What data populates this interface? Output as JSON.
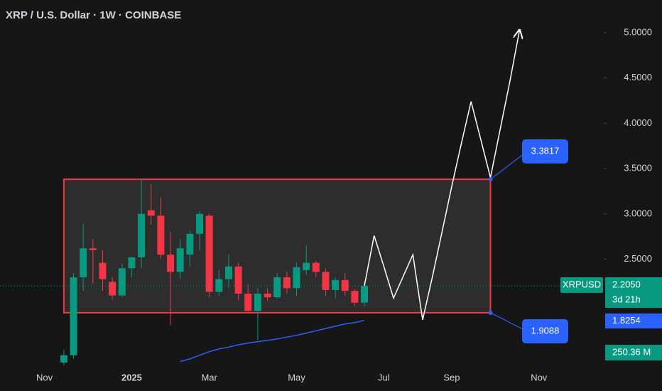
{
  "chart_data": {
    "type": "candlestick",
    "title": "XRP / U.S. Dollar · 1W · COINBASE",
    "categories": [
      null,
      null,
      null,
      null,
      "Nov",
      null,
      null,
      null,
      null,
      null,
      null,
      null,
      null,
      "2025",
      null,
      null,
      null,
      null,
      null,
      null,
      null,
      "Mar",
      null,
      null,
      null,
      null,
      null,
      null,
      null,
      null,
      "May",
      null,
      null,
      null,
      null,
      null,
      null,
      null,
      null,
      "Jul",
      null,
      null,
      null,
      null,
      null,
      null,
      "Sep",
      null,
      null,
      null,
      null,
      null,
      null,
      null,
      null,
      "Nov",
      null,
      null,
      null,
      null,
      null,
      null
    ],
    "series": [
      {
        "name": "XRPUSD",
        "up_color": "#089981",
        "down_color": "#f23645",
        "open": [
          null,
          null,
          null,
          null,
          null,
          null,
          1.36,
          1.44,
          2.3,
          2.62,
          2.46,
          2.25,
          2.1,
          2.4,
          2.52,
          3.04,
          2.98,
          2.55,
          2.36,
          2.55,
          2.78,
          2.98,
          2.14,
          2.28,
          2.42,
          2.12,
          1.93,
          2.12,
          2.08,
          2.3,
          2.18,
          2.38,
          2.46,
          2.36,
          2.16,
          2.27,
          2.15,
          2.02,
          null,
          null,
          null,
          null,
          null,
          null,
          null,
          null,
          null,
          null,
          null,
          null,
          null,
          null,
          null,
          null,
          null,
          null,
          null,
          null,
          null,
          null,
          null,
          null
        ],
        "high": [
          null,
          null,
          null,
          null,
          null,
          null,
          1.5,
          2.35,
          2.89,
          2.72,
          2.6,
          2.3,
          2.45,
          2.53,
          3.39,
          3.33,
          3.18,
          2.8,
          2.72,
          2.82,
          3.03,
          3.0,
          2.38,
          2.55,
          2.46,
          2.22,
          2.18,
          2.18,
          2.35,
          2.36,
          2.46,
          2.65,
          2.48,
          2.4,
          2.3,
          2.35,
          2.17,
          2.25,
          null,
          null,
          null,
          null,
          null,
          null,
          null,
          null,
          null,
          null,
          null,
          null,
          null,
          null,
          null,
          null,
          null,
          null,
          null,
          null,
          null,
          null,
          null,
          null
        ],
        "low": [
          null,
          null,
          null,
          null,
          null,
          null,
          1.33,
          1.4,
          2.15,
          2.23,
          2.15,
          2.05,
          2.08,
          2.3,
          2.4,
          2.88,
          2.5,
          1.77,
          2.28,
          2.42,
          2.6,
          2.08,
          2.1,
          2.18,
          2.05,
          1.91,
          1.61,
          2.04,
          2.06,
          2.12,
          2.1,
          2.33,
          2.3,
          2.1,
          2.07,
          2.1,
          1.98,
          1.98,
          null,
          null,
          null,
          null,
          null,
          null,
          null,
          null,
          null,
          null,
          null,
          null,
          null,
          null,
          null,
          null,
          null,
          null,
          null,
          null,
          null,
          null,
          null,
          null
        ],
        "close": [
          null,
          null,
          null,
          null,
          null,
          null,
          1.44,
          2.3,
          2.62,
          2.6,
          2.28,
          2.1,
          2.4,
          2.52,
          3.0,
          2.98,
          2.55,
          2.36,
          2.62,
          2.78,
          3.0,
          2.14,
          2.28,
          2.42,
          2.12,
          1.93,
          2.12,
          2.08,
          2.3,
          2.18,
          2.41,
          2.46,
          2.36,
          2.16,
          2.27,
          2.15,
          2.02,
          2.205,
          null,
          null,
          null,
          null,
          null,
          null,
          null,
          null,
          null,
          null,
          null,
          null,
          null,
          null,
          null,
          null,
          null,
          null,
          null,
          null,
          null,
          null,
          null,
          null
        ],
        "last_label": "2.2050",
        "countdown": "3d 21h",
        "volume_label": "250.36 M"
      }
    ],
    "ma": {
      "color": "#2962ff",
      "values": [
        null,
        null,
        null,
        null,
        null,
        null,
        null,
        null,
        null,
        null,
        null,
        null,
        null,
        null,
        null,
        null,
        null,
        null,
        1.37,
        1.4,
        1.44,
        1.48,
        1.51,
        1.53,
        1.555,
        1.575,
        1.59,
        1.605,
        1.62,
        1.64,
        1.66,
        1.685,
        1.71,
        1.735,
        1.76,
        1.785,
        1.8,
        1.8254,
        null,
        null,
        null,
        null,
        null,
        null,
        null,
        null,
        null,
        null,
        null,
        null,
        null,
        null,
        null,
        null,
        null,
        null,
        null,
        null,
        null,
        null,
        null,
        null
      ]
    },
    "projection": {
      "color": "#ffffff",
      "values": [
        null,
        null,
        null,
        null,
        null,
        null,
        null,
        null,
        null,
        null,
        null,
        null,
        null,
        null,
        null,
        null,
        null,
        null,
        null,
        null,
        null,
        null,
        null,
        null,
        null,
        null,
        null,
        null,
        null,
        null,
        null,
        null,
        null,
        null,
        null,
        null,
        null,
        2.205,
        2.76,
        2.42,
        2.07,
        2.31,
        2.55,
        1.83,
        2.3,
        2.8,
        3.3,
        3.78,
        4.24,
        3.82,
        3.4,
        3.93,
        4.46,
        5.03,
        null,
        null,
        null,
        null,
        null,
        null,
        null,
        null
      ]
    },
    "range_box": {
      "top": 3.3817,
      "bottom": 1.9088,
      "color": "#f23645",
      "label_color": "#2962ff"
    },
    "ylim": [
      1.32,
      5.36
    ],
    "yticks": [
      {
        "value": 2.5,
        "label": "2.5000"
      },
      {
        "value": 3,
        "label": "3.0000"
      },
      {
        "value": 3.5,
        "label": "3.5000"
      },
      {
        "value": 4,
        "label": "4.0000"
      },
      {
        "value": 4.5,
        "label": "4.5000"
      },
      {
        "value": 5,
        "label": "5.0000"
      }
    ]
  }
}
